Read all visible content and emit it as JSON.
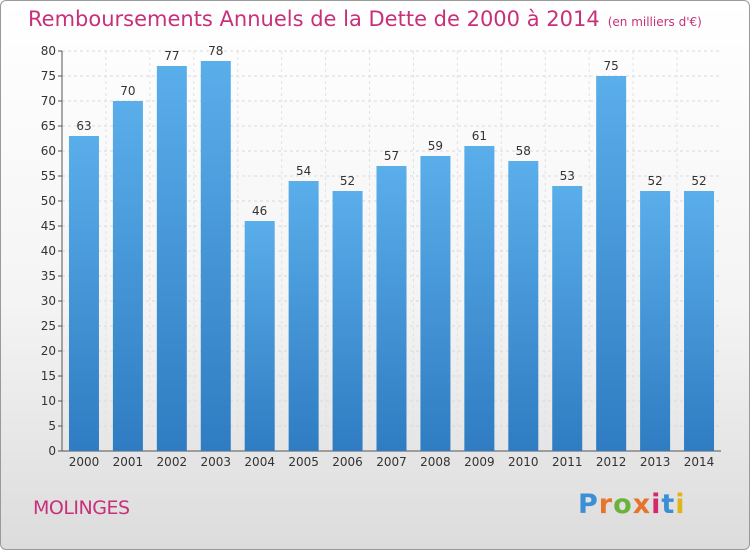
{
  "chart_data": {
    "type": "bar",
    "title": "Remboursements Annuels de la Dette de 2000 à 2014",
    "subtitle": "(en milliers d'€)",
    "categories": [
      "2000",
      "2001",
      "2002",
      "2003",
      "2004",
      "2005",
      "2006",
      "2007",
      "2008",
      "2009",
      "2010",
      "2011",
      "2012",
      "2013",
      "2014"
    ],
    "values": [
      63,
      70,
      77,
      78,
      46,
      54,
      52,
      57,
      59,
      61,
      58,
      53,
      75,
      52,
      52
    ],
    "ylim": [
      0,
      80
    ],
    "yticks": [
      0,
      5,
      10,
      15,
      20,
      25,
      30,
      35,
      40,
      45,
      50,
      55,
      60,
      65,
      70,
      75,
      80
    ],
    "grid": true,
    "bar_color": "#4a9be0",
    "title_color": "#c8307a"
  },
  "footer": {
    "place": "MOLINGES",
    "brand": "Proxiti",
    "brand_colors": [
      "#3a8fd6",
      "#e8732a",
      "#6ab23c",
      "#e8732a",
      "#d12b6b",
      "#3a8fd6",
      "#e0b41a"
    ]
  }
}
